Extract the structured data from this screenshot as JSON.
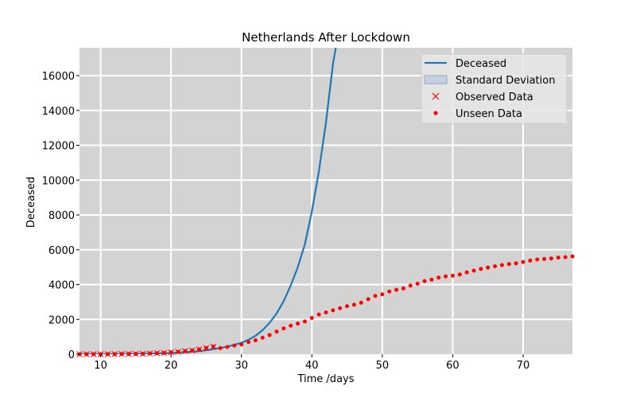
{
  "chart_data": {
    "type": "line",
    "title": "Netherlands After Lockdown",
    "xlabel": "Time /days",
    "ylabel": "Deceased",
    "xlim": [
      7,
      77
    ],
    "ylim": [
      0,
      17600
    ],
    "xticks": [
      10,
      20,
      30,
      40,
      50,
      60,
      70
    ],
    "yticks": [
      0,
      2000,
      4000,
      6000,
      8000,
      10000,
      12000,
      14000,
      16000
    ],
    "grid": true,
    "legend_position": "top-right",
    "colors": {
      "deceased": "#1f77b4",
      "std_fill": "#b0c4de",
      "observed": "#ff0000",
      "unseen": "#ff0000",
      "plot_bg": "#d3d3d3",
      "grid": "#ffffff"
    },
    "legend": [
      {
        "key": "deceased",
        "label": "Deceased",
        "kind": "line"
      },
      {
        "key": "std",
        "label": "Standard Deviation",
        "kind": "patch"
      },
      {
        "key": "observed",
        "label": "Observed Data",
        "kind": "x"
      },
      {
        "key": "unseen",
        "label": "Unseen Data",
        "kind": "dot"
      }
    ],
    "series": [
      {
        "name": "Deceased",
        "kind": "line",
        "x": [
          7,
          10,
          15,
          20,
          22,
          24,
          25,
          26,
          27,
          28,
          29,
          30,
          31,
          32,
          33,
          34,
          35,
          36,
          37,
          38,
          39,
          40,
          41,
          42,
          43,
          43.4
        ],
        "y": [
          0,
          5,
          20,
          70,
          120,
          180,
          230,
          290,
          360,
          440,
          540,
          660,
          830,
          1060,
          1380,
          1800,
          2350,
          3050,
          3950,
          5000,
          6300,
          8200,
          10500,
          13300,
          16700,
          17600
        ]
      },
      {
        "name": "Observed Data",
        "kind": "x",
        "x": [
          7,
          8,
          9,
          10,
          11,
          12,
          13,
          14,
          15,
          16,
          17,
          18,
          19,
          20,
          21,
          22,
          23,
          24,
          25,
          26
        ],
        "y": [
          0,
          0,
          0,
          1,
          3,
          5,
          10,
          12,
          20,
          24,
          43,
          58,
          76,
          106,
          136,
          179,
          213,
          276,
          356,
          434
        ]
      },
      {
        "name": "Unseen Data",
        "kind": "dot",
        "x": [
          7,
          8,
          9,
          10,
          11,
          12,
          13,
          14,
          15,
          16,
          17,
          18,
          19,
          20,
          21,
          22,
          23,
          24,
          25,
          26,
          27,
          28,
          29,
          30,
          31,
          32,
          33,
          34,
          35,
          36,
          37,
          38,
          39,
          40,
          41,
          42,
          43,
          44,
          45,
          46,
          47,
          48,
          49,
          50,
          51,
          52,
          53,
          54,
          55,
          56,
          57,
          58,
          59,
          60,
          61,
          62,
          63,
          64,
          65,
          66,
          67,
          68,
          69,
          70,
          71,
          72,
          73,
          74,
          75,
          76,
          77
        ],
        "y": [
          0,
          0,
          0,
          1,
          3,
          5,
          10,
          12,
          20,
          24,
          43,
          58,
          76,
          106,
          136,
          179,
          213,
          276,
          356,
          434,
          350,
          420,
          500,
          560,
          700,
          800,
          950,
          1100,
          1300,
          1480,
          1640,
          1760,
          1880,
          2080,
          2280,
          2400,
          2520,
          2640,
          2760,
          2840,
          2960,
          3160,
          3350,
          3440,
          3600,
          3700,
          3780,
          3940,
          4050,
          4200,
          4280,
          4400,
          4470,
          4510,
          4580,
          4700,
          4800,
          4900,
          4980,
          5050,
          5120,
          5180,
          5220,
          5300,
          5380,
          5440,
          5470,
          5500,
          5550,
          5570,
          5620
        ]
      }
    ]
  }
}
